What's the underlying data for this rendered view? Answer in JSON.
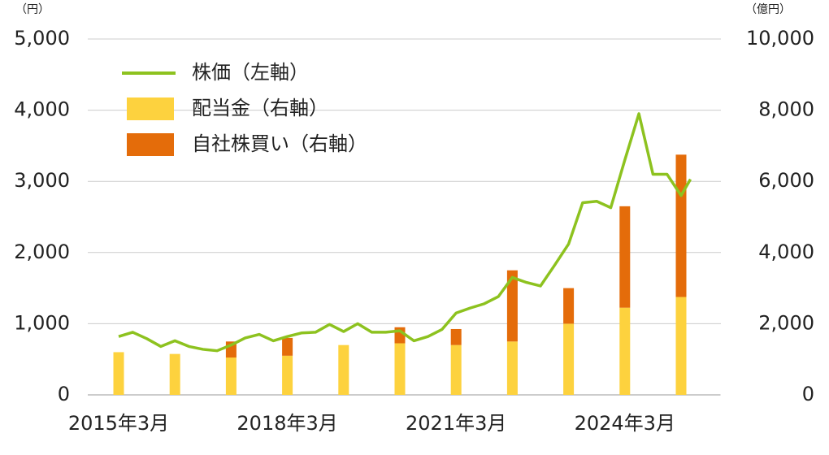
{
  "chart_data": {
    "type": "bar_line",
    "ylabel": "（円）",
    "y2label": "（億円）",
    "categories": [
      "2015年3月",
      null,
      null,
      "2018年3月",
      null,
      null,
      "2021年3月",
      null,
      null,
      "2024年3月",
      null
    ],
    "ylim": [
      0,
      5000
    ],
    "yticks": [
      0,
      {
        "value": 1000,
        "label": "1,000"
      },
      {
        "value": 2000,
        "label": "2,000"
      },
      {
        "value": 3000,
        "label": "3,000"
      },
      {
        "value": 4000,
        "label": "4,000"
      },
      {
        "value": 5000,
        "label": "5,000"
      }
    ],
    "y2lim": [
      0,
      10000
    ],
    "y2ticks": [
      0,
      {
        "value": 2000,
        "label": "2,000"
      },
      {
        "value": 4000,
        "label": "4,000"
      },
      {
        "value": 6000,
        "label": "6,000"
      },
      {
        "value": 8000,
        "label": "8,000"
      },
      {
        "value": 10000,
        "label": "10,000"
      }
    ],
    "grid": true,
    "legend": "upper left",
    "series": [
      {
        "name": "株価（左軸）",
        "type": "line",
        "color": "#8dc21f",
        "x": [
          "2015-03",
          "2015-06",
          "2015-09",
          "2015-12",
          "2016-03",
          "2016-06",
          "2016-09",
          "2016-12",
          "2017-03",
          "2017-06",
          "2017-09",
          "2017-12",
          "2018-03",
          "2018-06",
          "2018-09",
          "2018-12",
          "2019-03",
          "2019-06",
          "2019-09",
          "2019-12",
          "2020-03",
          "2020-06",
          "2020-09",
          "2020-12",
          "2021-03",
          "2021-06",
          "2021-09",
          "2021-12",
          "2022-03",
          "2022-06",
          "2022-09",
          "2022-12",
          "2023-03",
          "2023-06",
          "2023-09",
          "2023-12",
          "2024-03",
          "2024-06",
          "2024-09",
          "2024-12",
          "2025-03",
          "2025-05"
        ],
        "values": [
          820,
          880,
          790,
          680,
          760,
          680,
          640,
          620,
          700,
          800,
          850,
          760,
          820,
          870,
          880,
          990,
          890,
          1000,
          880,
          880,
          900,
          760,
          820,
          920,
          1150,
          1220,
          1280,
          1380,
          1650,
          1580,
          1530,
          1820,
          2120,
          2700,
          2720,
          2630,
          3300,
          3950,
          3100,
          3100,
          2800,
          3030
        ]
      },
      {
        "name": "配当金（右軸）",
        "type": "bar",
        "axis": "y2",
        "color": "#fdd23e",
        "values": [
          1200,
          1150,
          1050,
          1100,
          1400,
          1450,
          1400,
          1500,
          2000,
          2450,
          2750
        ]
      },
      {
        "name": "自社株買い（右軸）",
        "type": "bar",
        "axis": "y2",
        "color": "#e46c0a",
        "values": [
          0,
          0,
          450,
          500,
          0,
          450,
          450,
          2000,
          1000,
          2850,
          4000
        ]
      }
    ]
  }
}
